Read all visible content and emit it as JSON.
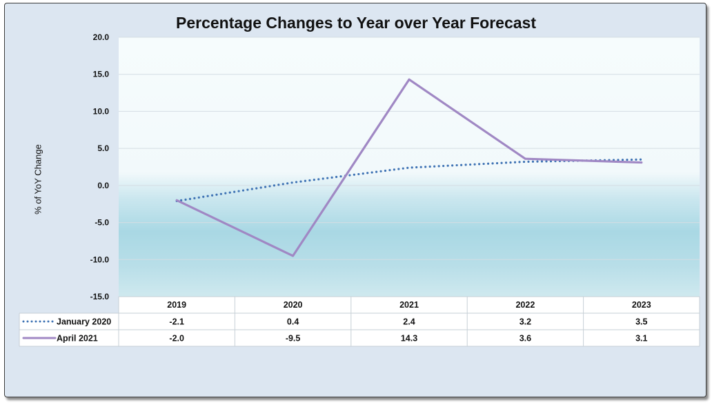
{
  "chart_data": {
    "type": "line",
    "title": "Percentage Changes to Year over Year Forecast",
    "ylabel": "% of YoY Change",
    "xlabel": "",
    "categories": [
      "2019",
      "2020",
      "2021",
      "2022",
      "2023"
    ],
    "ylim": [
      -15,
      20
    ],
    "yticks": [
      "20.0",
      "15.0",
      "10.0",
      "5.0",
      "0.0",
      "-5.0",
      "-10.0",
      "-15.0"
    ],
    "series": [
      {
        "name": "January 2020",
        "values": [
          -2.1,
          0.4,
          2.4,
          3.2,
          3.5
        ],
        "labels": [
          "-2.1",
          "0.4",
          "2.4",
          "3.2",
          "3.5"
        ],
        "color": "#3f73b4",
        "style": "dotted"
      },
      {
        "name": "April 2021",
        "values": [
          -2.0,
          -9.5,
          14.3,
          3.6,
          3.1
        ],
        "labels": [
          "-2.0",
          "-9.5",
          "14.3",
          "3.6",
          "3.1"
        ],
        "color": "#a088c4",
        "style": "solid"
      }
    ],
    "legend": "data-table",
    "grid": true
  }
}
